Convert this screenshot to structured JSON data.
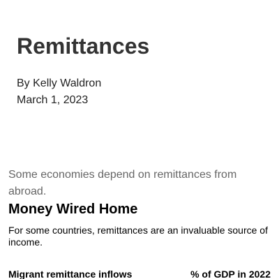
{
  "article": {
    "title": "Remittances",
    "author": "By Kelly Waldron",
    "date": "March 1, 2023",
    "dek": "Some economies depend on remittances from abroad."
  },
  "chart": {
    "title": "Money Wired Home",
    "description": "For some countries, remittances are an invaluable source of income.",
    "columns": [
      "Migrant remittance inflows",
      "% of GDP in 2022"
    ]
  }
}
